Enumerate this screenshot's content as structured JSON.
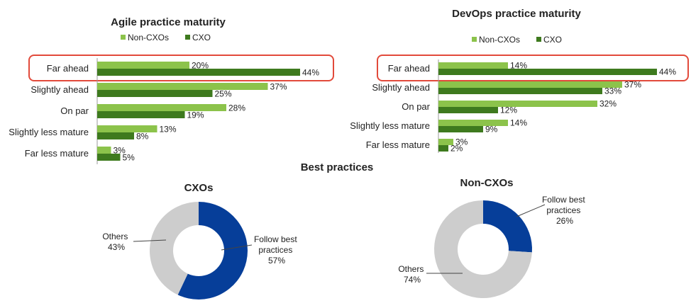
{
  "section_title": "Best practices",
  "colors": {
    "non_cxo": "#8CC34B",
    "cxo": "#3E7A1E",
    "highlight": "#E24A3B",
    "follow": "#063E99",
    "others": "#CDCDCD",
    "axis": "#9A9A9A"
  },
  "chart_data": [
    {
      "type": "bar",
      "orientation": "horizontal",
      "title": "Agile practice maturity",
      "categories": [
        "Far ahead",
        "Slightly ahead",
        "On par",
        "Slightly less mature",
        "Far less mature"
      ],
      "series": [
        {
          "name": "Non-CXOs",
          "values": [
            20,
            37,
            28,
            13,
            3
          ],
          "labels": [
            "20%",
            "37%",
            "28%",
            "13%",
            "3%"
          ]
        },
        {
          "name": "CXO",
          "values": [
            44,
            25,
            19,
            8,
            5
          ],
          "labels": [
            "44%",
            "25%",
            "19%",
            "8%",
            "5%"
          ]
        }
      ],
      "value_unit": "%",
      "legend_position": "top",
      "highlighted_category": "Far ahead"
    },
    {
      "type": "bar",
      "orientation": "horizontal",
      "title": "DevOps practice maturity",
      "categories": [
        "Far ahead",
        "Slightly ahead",
        "On par",
        "Slightly less mature",
        "Far less mature"
      ],
      "series": [
        {
          "name": "Non-CXOs",
          "values": [
            14,
            37,
            32,
            14,
            3
          ],
          "labels": [
            "14%",
            "37%",
            "32%",
            "14%",
            "3%"
          ]
        },
        {
          "name": "CXO",
          "values": [
            44,
            33,
            12,
            9,
            2
          ],
          "labels": [
            "44%",
            "33%",
            "12%",
            "9%",
            "2%"
          ]
        }
      ],
      "value_unit": "%",
      "legend_position": "top",
      "highlighted_category": "Far ahead"
    },
    {
      "type": "pie",
      "variant": "donut",
      "title": "CXOs",
      "slices": [
        {
          "label": "Follow best practices",
          "value": 57,
          "value_label": "57%",
          "color": "#063E99"
        },
        {
          "label": "Others",
          "value": 43,
          "value_label": "43%",
          "color": "#CDCDCD"
        }
      ]
    },
    {
      "type": "pie",
      "variant": "donut",
      "title": "Non-CXOs",
      "slices": [
        {
          "label": "Follow best practices",
          "value": 26,
          "value_label": "26%",
          "color": "#063E99"
        },
        {
          "label": "Others",
          "value": 74,
          "value_label": "74%",
          "color": "#CDCDCD"
        }
      ]
    }
  ]
}
